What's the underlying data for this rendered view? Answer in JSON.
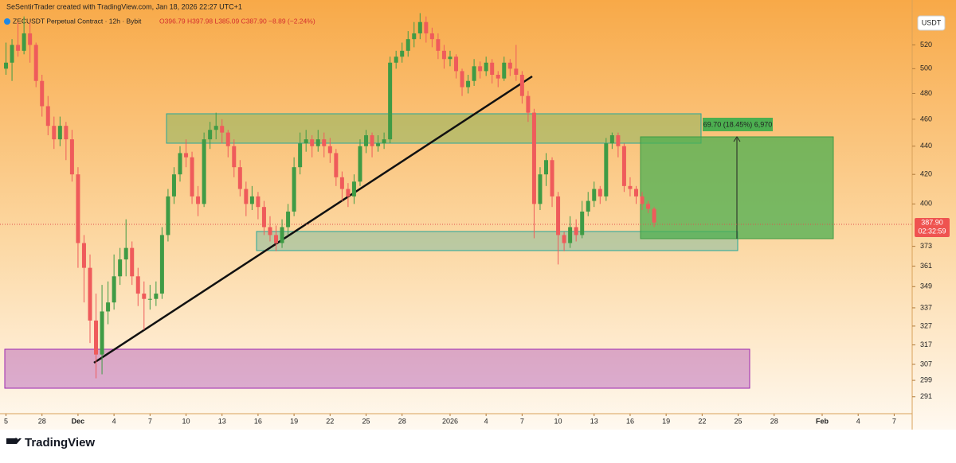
{
  "chart_data": {
    "type": "candlestick",
    "header": "SeSentirTrader created with TradingView.com, Jan 18, 2026 22:27 UTC+1",
    "symbol": "ZECUSDT Perpetual Contract · 12h · Bybit",
    "ohlc_legend": "O396.79 H397.98 L385.09 C387.90 −8.89 (−2.24%)",
    "currency": "USDT",
    "position_label": "69.70 (18.45%) 6,970",
    "last_price_label": "387.90",
    "countdown": "02:32:59",
    "brand": "TradingView",
    "log_scale": true,
    "up_color": "#3f9b45",
    "down_color": "#ef5b5b",
    "ylim": [
      283,
      560
    ],
    "yticks": [
      291,
      299,
      307,
      317,
      327,
      337,
      349,
      361,
      373,
      400,
      420,
      440,
      460,
      480,
      500,
      520
    ],
    "xlim": [
      -1,
      151
    ],
    "xticks": [
      {
        "value": 0,
        "label": "5"
      },
      {
        "value": 6,
        "label": "28"
      },
      {
        "value": 12,
        "label": "Dec"
      },
      {
        "value": 18,
        "label": "4"
      },
      {
        "value": 24,
        "label": "7"
      },
      {
        "value": 30,
        "label": "10"
      },
      {
        "value": 36,
        "label": "13"
      },
      {
        "value": 42,
        "label": "16"
      },
      {
        "value": 48,
        "label": "19"
      },
      {
        "value": 54,
        "label": "22"
      },
      {
        "value": 60,
        "label": "25"
      },
      {
        "value": 66,
        "label": "28"
      },
      {
        "value": 74,
        "label": "2026"
      },
      {
        "value": 80,
        "label": "4"
      },
      {
        "value": 86,
        "label": "7"
      },
      {
        "value": 92,
        "label": "10"
      },
      {
        "value": 98,
        "label": "13"
      },
      {
        "value": 104,
        "label": "16"
      },
      {
        "value": 110,
        "label": "19"
      },
      {
        "value": 116,
        "label": "22"
      },
      {
        "value": 122,
        "label": "25"
      },
      {
        "value": 128,
        "label": "28"
      },
      {
        "value": 136,
        "label": "Feb"
      },
      {
        "value": 142,
        "label": "4"
      },
      {
        "value": 148,
        "label": "7"
      }
    ],
    "ohlc": [
      [
        500,
        522,
        495,
        505
      ],
      [
        505,
        525,
        490,
        520
      ],
      [
        520,
        540,
        510,
        515
      ],
      [
        515,
        545,
        512,
        530
      ],
      [
        530,
        540,
        505,
        520
      ],
      [
        520,
        522,
        485,
        490
      ],
      [
        490,
        495,
        462,
        470
      ],
      [
        470,
        478,
        448,
        455
      ],
      [
        455,
        462,
        438,
        445
      ],
      [
        445,
        462,
        440,
        455
      ],
      [
        455,
        458,
        430,
        445
      ],
      [
        445,
        452,
        415,
        420
      ],
      [
        420,
        425,
        360,
        375
      ],
      [
        375,
        380,
        340,
        360
      ],
      [
        360,
        368,
        318,
        330
      ],
      [
        330,
        345,
        300,
        312
      ],
      [
        312,
        350,
        302,
        335
      ],
      [
        335,
        352,
        328,
        340
      ],
      [
        340,
        368,
        336,
        355
      ],
      [
        355,
        372,
        350,
        365
      ],
      [
        365,
        390,
        355,
        372
      ],
      [
        372,
        376,
        350,
        355
      ],
      [
        355,
        360,
        338,
        345
      ],
      [
        345,
        352,
        325,
        342
      ],
      [
        342,
        350,
        336,
        342
      ],
      [
        342,
        352,
        338,
        345
      ],
      [
        345,
        385,
        342,
        380
      ],
      [
        380,
        410,
        376,
        405
      ],
      [
        405,
        425,
        400,
        420
      ],
      [
        420,
        440,
        415,
        435
      ],
      [
        435,
        445,
        425,
        432
      ],
      [
        432,
        436,
        400,
        405
      ],
      [
        405,
        412,
        392,
        400
      ],
      [
        400,
        450,
        398,
        445
      ],
      [
        445,
        458,
        438,
        452
      ],
      [
        452,
        465,
        445,
        455
      ],
      [
        455,
        460,
        442,
        450
      ],
      [
        450,
        452,
        432,
        440
      ],
      [
        440,
        445,
        418,
        425
      ],
      [
        425,
        430,
        405,
        410
      ],
      [
        410,
        415,
        392,
        400
      ],
      [
        400,
        412,
        396,
        405
      ],
      [
        405,
        408,
        390,
        398
      ],
      [
        398,
        402,
        380,
        385
      ],
      [
        385,
        392,
        376,
        380
      ],
      [
        380,
        386,
        370,
        375
      ],
      [
        375,
        390,
        372,
        385
      ],
      [
        385,
        400,
        380,
        395
      ],
      [
        395,
        432,
        392,
        425
      ],
      [
        425,
        450,
        420,
        442
      ],
      [
        442,
        452,
        436,
        445
      ],
      [
        445,
        448,
        432,
        440
      ],
      [
        440,
        452,
        436,
        445
      ],
      [
        445,
        450,
        432,
        440
      ],
      [
        440,
        446,
        428,
        435
      ],
      [
        435,
        438,
        412,
        418
      ],
      [
        418,
        422,
        402,
        410
      ],
      [
        410,
        414,
        398,
        405
      ],
      [
        405,
        420,
        400,
        415
      ],
      [
        415,
        445,
        412,
        440
      ],
      [
        440,
        452,
        435,
        448
      ],
      [
        448,
        450,
        432,
        440
      ],
      [
        440,
        448,
        436,
        442
      ],
      [
        442,
        450,
        438,
        445
      ],
      [
        445,
        510,
        442,
        505
      ],
      [
        505,
        515,
        500,
        510
      ],
      [
        510,
        522,
        505,
        515
      ],
      [
        515,
        532,
        510,
        525
      ],
      [
        525,
        540,
        518,
        530
      ],
      [
        530,
        548,
        525,
        540
      ],
      [
        540,
        545,
        522,
        530
      ],
      [
        530,
        535,
        518,
        525
      ],
      [
        525,
        530,
        508,
        515
      ],
      [
        515,
        520,
        500,
        508
      ],
      [
        508,
        515,
        502,
        510
      ],
      [
        510,
        512,
        492,
        498
      ],
      [
        498,
        500,
        478,
        485
      ],
      [
        485,
        495,
        480,
        490
      ],
      [
        490,
        508,
        486,
        502
      ],
      [
        502,
        506,
        492,
        498
      ],
      [
        498,
        510,
        494,
        505
      ],
      [
        505,
        508,
        488,
        495
      ],
      [
        495,
        498,
        485,
        492
      ],
      [
        492,
        510,
        490,
        505
      ],
      [
        505,
        508,
        494,
        500
      ],
      [
        500,
        520,
        490,
        495
      ],
      [
        495,
        498,
        472,
        478
      ],
      [
        478,
        482,
        458,
        465
      ],
      [
        465,
        468,
        378,
        400
      ],
      [
        400,
        425,
        396,
        420
      ],
      [
        420,
        435,
        412,
        430
      ],
      [
        430,
        432,
        398,
        405
      ],
      [
        405,
        408,
        362,
        380
      ],
      [
        380,
        382,
        370,
        375
      ],
      [
        375,
        392,
        372,
        385
      ],
      [
        385,
        390,
        376,
        380
      ],
      [
        380,
        402,
        378,
        395
      ],
      [
        395,
        408,
        392,
        402
      ],
      [
        402,
        415,
        398,
        410
      ],
      [
        410,
        412,
        400,
        405
      ],
      [
        405,
        446,
        402,
        442
      ],
      [
        442,
        450,
        438,
        448
      ],
      [
        448,
        450,
        432,
        440
      ],
      [
        440,
        442,
        408,
        412
      ],
      [
        412,
        418,
        405,
        410
      ],
      [
        410,
        412,
        400,
        405
      ],
      [
        405,
        408,
        396,
        400
      ],
      [
        400,
        402,
        394,
        396.79
      ],
      [
        396.79,
        397.98,
        385.09,
        387.9
      ]
    ]
  }
}
